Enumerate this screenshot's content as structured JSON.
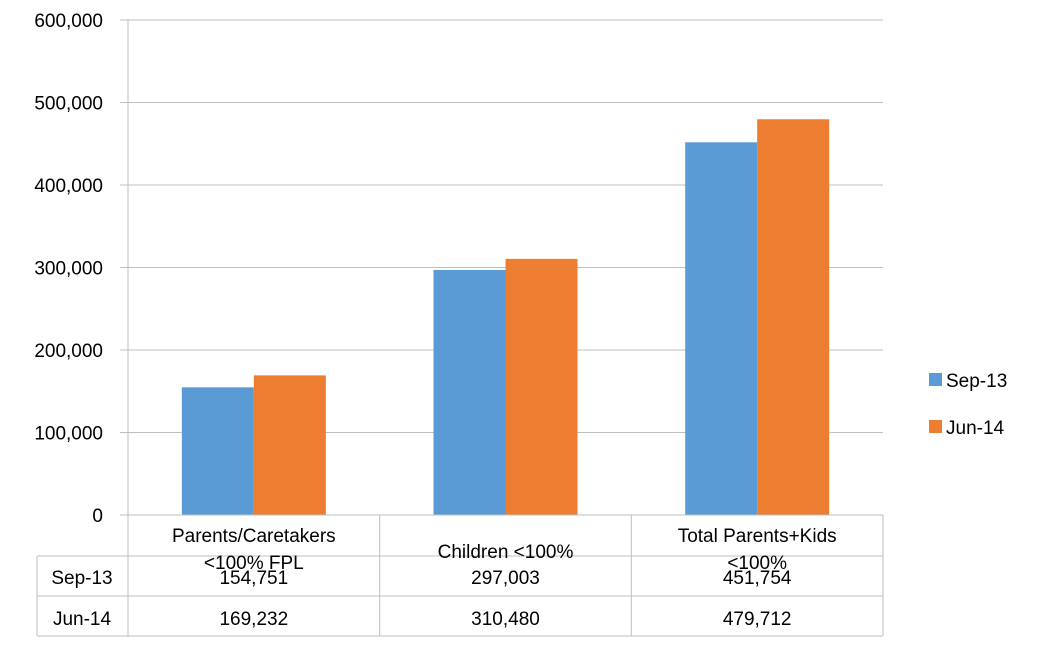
{
  "chart_data": {
    "type": "bar",
    "categories": [
      [
        "Parents/Caretakers",
        "<100% FPL"
      ],
      [
        "Children <100%"
      ],
      [
        "Total Parents+Kids",
        "<100%"
      ]
    ],
    "series": [
      {
        "name": "Sep-13",
        "values": [
          154751,
          297003,
          451754
        ],
        "labels": [
          "154,751",
          "297,003",
          "451,754"
        ],
        "color": "#5B9BD5"
      },
      {
        "name": "Jun-14",
        "values": [
          169232,
          310480,
          479712
        ],
        "labels": [
          "169,232",
          "310,480",
          "479,712"
        ],
        "color": "#ED7D31"
      }
    ],
    "ylim": [
      0,
      600000
    ],
    "yticks": [
      0,
      100000,
      200000,
      300000,
      400000,
      500000,
      600000
    ],
    "ytick_labels": [
      "0",
      "100,000",
      "200,000",
      "300,000",
      "400,000",
      "500,000",
      "600,000"
    ],
    "grid": true,
    "legend_position": "right",
    "data_table": true
  }
}
